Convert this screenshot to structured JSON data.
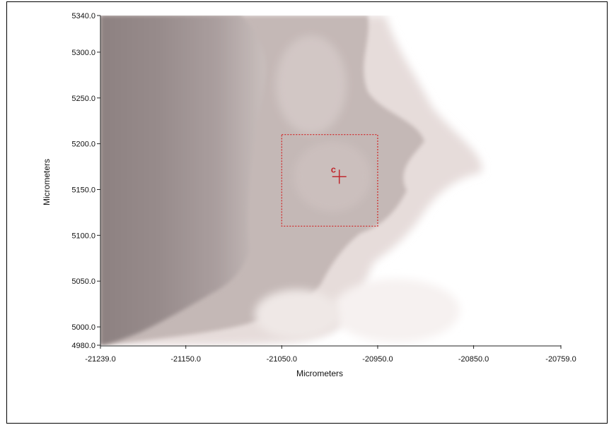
{
  "x_axis": {
    "title": "Micrometers",
    "ticks": [
      "-21239.0",
      "-21150.0",
      "-21050.0",
      "-20950.0",
      "-20850.0",
      "-20759.0"
    ],
    "range": [
      -21239.0,
      -20759.0
    ]
  },
  "y_axis": {
    "title": "Micrometers",
    "ticks": [
      "5340.0",
      "5300.0",
      "5250.0",
      "5200.0",
      "5150.0",
      "5100.0",
      "5050.0",
      "5000.0",
      "4980.0"
    ],
    "range": [
      4980.0,
      5340.0
    ]
  },
  "marker": {
    "label": "c",
    "x": -20990.0,
    "y": 5164.0,
    "color": "#c0282e"
  },
  "selection_box": {
    "x_range": [
      -21050.0,
      -20950.0
    ],
    "y_range": [
      5110.0,
      5210.0
    ],
    "color": "#d03030"
  },
  "colors": {
    "dark_tissue": "#8f8383",
    "mid_tissue": "#b7abab",
    "light_tissue": "#e2d8d6",
    "background": "#ffffff"
  }
}
